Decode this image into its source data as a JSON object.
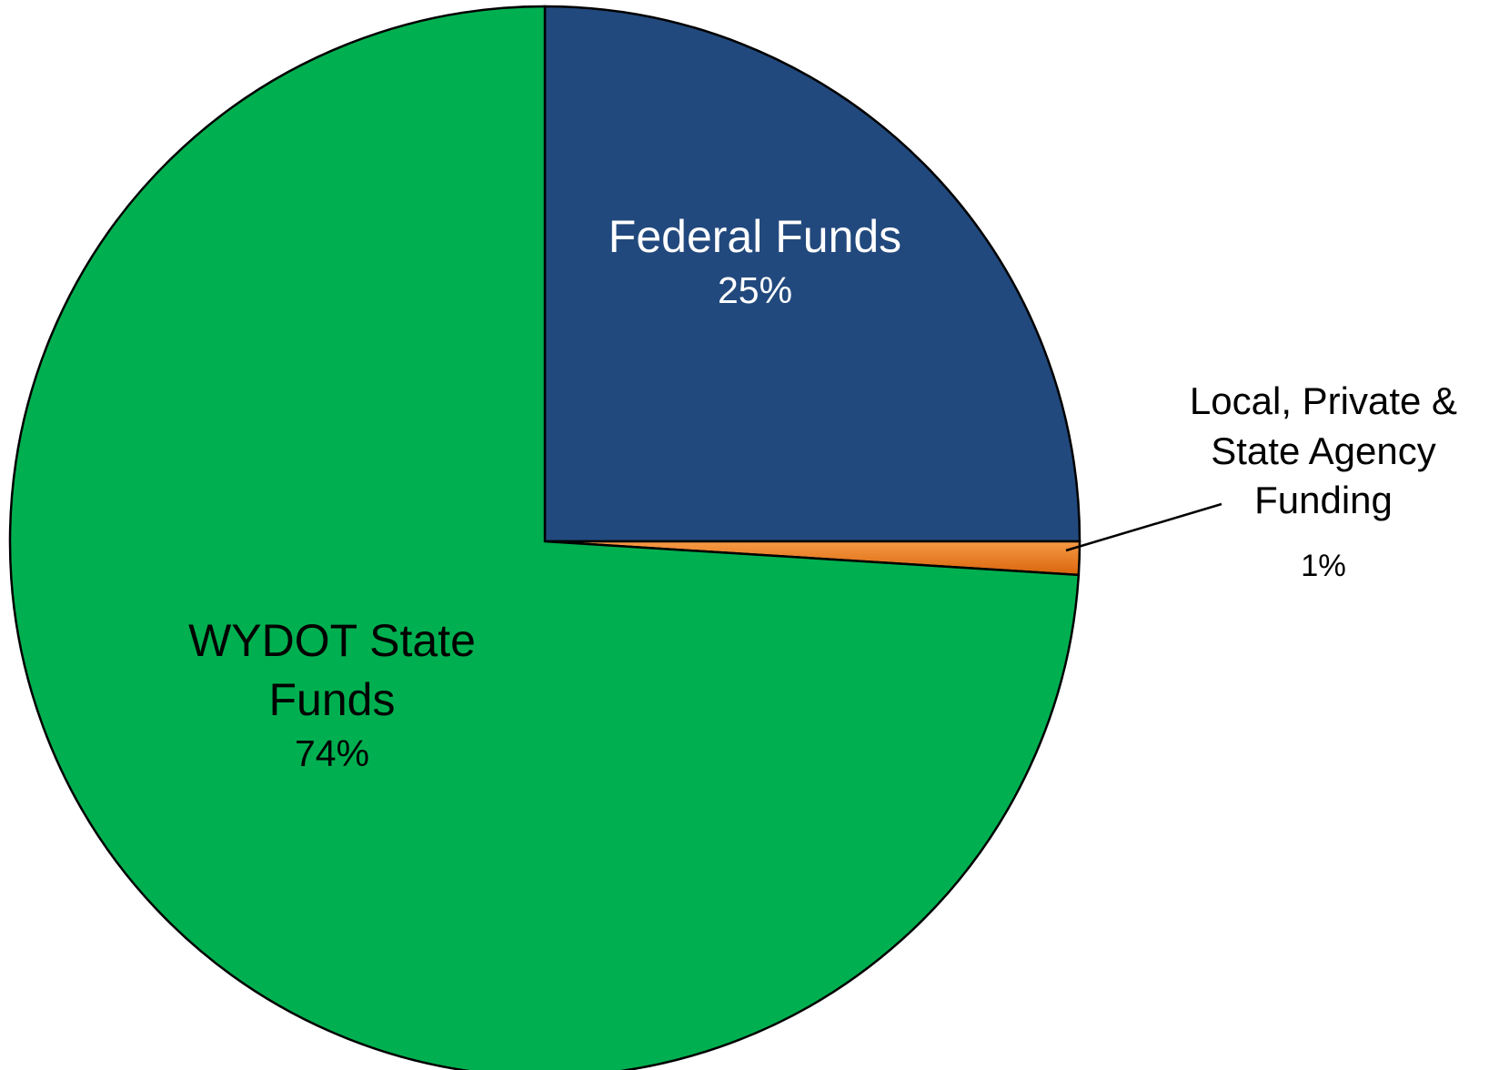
{
  "chart_data": {
    "type": "pie",
    "categories": [
      "Federal Funds",
      "Local, Private & State Agency Funding",
      "WYDOT State Funds"
    ],
    "values": [
      25,
      1,
      74
    ],
    "value_labels": [
      "25%",
      "1%",
      "74%"
    ],
    "colors": [
      "#22497d",
      "#f07d1b",
      "#00b050"
    ],
    "label_colors": [
      "#ffffff",
      "#000000",
      "#000000"
    ]
  }
}
